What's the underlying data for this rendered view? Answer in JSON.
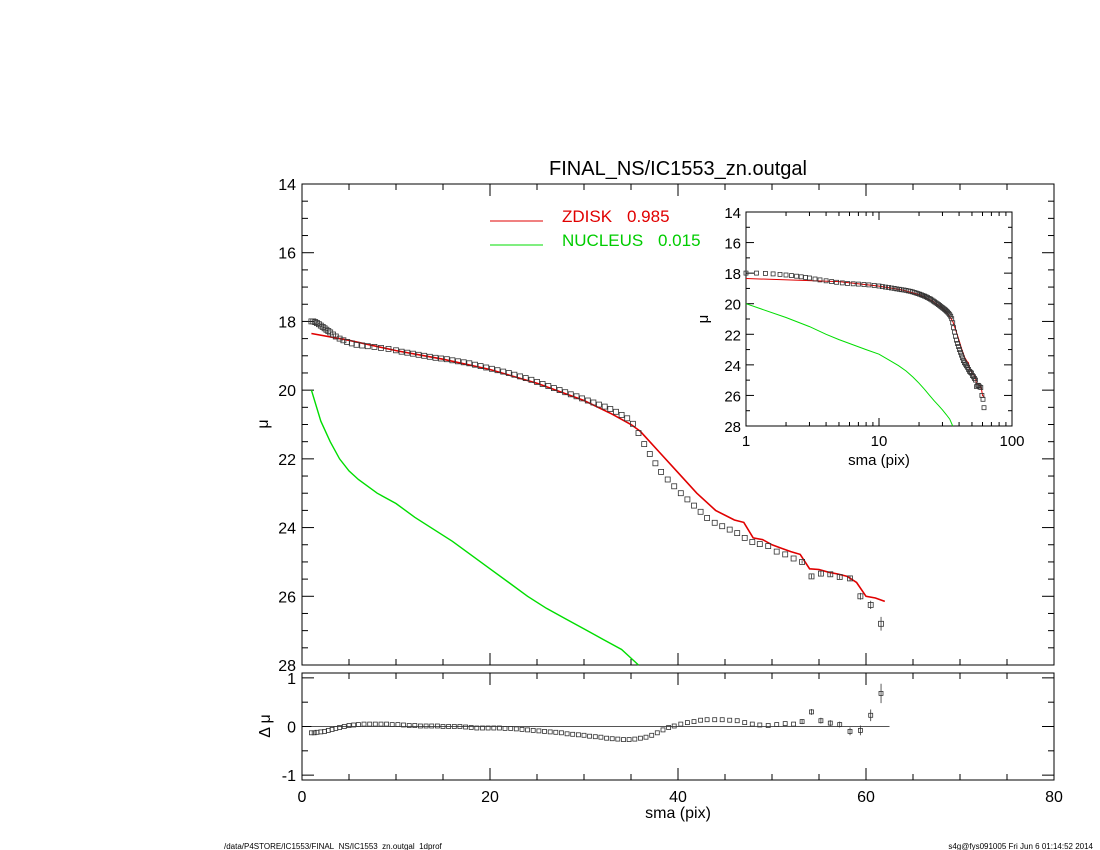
{
  "chart_data": [
    {
      "panel": "main",
      "type": "scatter",
      "title": "FINAL_NS/IC1553_zn.outgal",
      "xlabel": "sma (pix)",
      "ylabel": "μ",
      "xlim": [
        0,
        80
      ],
      "ylim": [
        28,
        14
      ],
      "x_ticks": [
        0,
        20,
        40,
        60,
        80
      ],
      "y_ticks": [
        14,
        16,
        18,
        20,
        22,
        24,
        26,
        28
      ],
      "legend_placement": "top-center",
      "legend": [
        {
          "name": "ZDISK",
          "value": "0.985",
          "color": "#e00000"
        },
        {
          "name": "NUCLEUS",
          "value": "0.015",
          "color": "#00dd00"
        }
      ],
      "observed": {
        "x": [
          1.0,
          1.2,
          1.4,
          1.6,
          1.8,
          2.0,
          2.2,
          2.4,
          2.6,
          2.8,
          3.0,
          3.3,
          3.6,
          4.0,
          4.4,
          4.8,
          5.3,
          5.8,
          6.4,
          7.0,
          7.7,
          8.4,
          9.2,
          10.0,
          10.6,
          11.2,
          11.8,
          12.4,
          13.0,
          13.6,
          14.2,
          14.8,
          15.4,
          16.0,
          16.6,
          17.2,
          17.8,
          18.4,
          19.0,
          19.6,
          20.2,
          20.8,
          21.4,
          22.0,
          22.6,
          23.2,
          23.8,
          24.4,
          25.0,
          25.6,
          26.2,
          26.8,
          27.4,
          28.0,
          28.6,
          29.2,
          29.8,
          30.4,
          31.0,
          31.6,
          32.2,
          32.8,
          33.4,
          34.0,
          34.6,
          35.2,
          35.8,
          36.4,
          37.0,
          37.6,
          38.2,
          38.9,
          39.6,
          40.3,
          41.0,
          41.7,
          42.4,
          43.1,
          43.9,
          44.7,
          45.5,
          46.3,
          47.1,
          47.9,
          48.7,
          49.6,
          50.5,
          51.4,
          52.3,
          53.2,
          54.2,
          55.2,
          56.2,
          57.2,
          58.3,
          59.4,
          60.5,
          61.6
        ],
        "y": [
          18.0,
          18.0,
          18.02,
          18.05,
          18.08,
          18.12,
          18.16,
          18.2,
          18.24,
          18.28,
          18.32,
          18.38,
          18.44,
          18.5,
          18.55,
          18.6,
          18.64,
          18.68,
          18.7,
          18.72,
          18.74,
          18.77,
          18.8,
          18.84,
          18.88,
          18.91,
          18.94,
          18.97,
          19.0,
          19.03,
          19.06,
          19.08,
          19.1,
          19.13,
          19.16,
          19.19,
          19.22,
          19.26,
          19.3,
          19.34,
          19.38,
          19.42,
          19.46,
          19.5,
          19.55,
          19.6,
          19.65,
          19.7,
          19.76,
          19.82,
          19.88,
          19.94,
          20.0,
          20.06,
          20.12,
          20.18,
          20.24,
          20.3,
          20.36,
          20.42,
          20.48,
          20.55,
          20.63,
          20.72,
          20.82,
          20.98,
          21.25,
          21.57,
          21.86,
          22.13,
          22.38,
          22.6,
          22.8,
          23.0,
          23.18,
          23.36,
          23.54,
          23.72,
          23.86,
          23.96,
          24.06,
          24.16,
          24.3,
          24.42,
          24.48,
          24.54,
          24.7,
          24.78,
          24.9,
          25.0,
          25.42,
          25.34,
          25.36,
          25.44,
          25.48,
          26.0,
          26.25,
          26.8
        ],
        "err": [
          0.02,
          0.02,
          0.02,
          0.02,
          0.02,
          0.02,
          0.02,
          0.02,
          0.02,
          0.02,
          0.02,
          0.02,
          0.02,
          0.02,
          0.02,
          0.02,
          0.02,
          0.02,
          0.02,
          0.02,
          0.02,
          0.02,
          0.02,
          0.02,
          0.02,
          0.02,
          0.02,
          0.02,
          0.02,
          0.02,
          0.02,
          0.02,
          0.02,
          0.02,
          0.02,
          0.02,
          0.02,
          0.02,
          0.02,
          0.02,
          0.02,
          0.02,
          0.02,
          0.02,
          0.02,
          0.02,
          0.02,
          0.02,
          0.02,
          0.02,
          0.02,
          0.02,
          0.02,
          0.02,
          0.02,
          0.02,
          0.02,
          0.02,
          0.02,
          0.02,
          0.02,
          0.02,
          0.02,
          0.02,
          0.02,
          0.02,
          0.02,
          0.02,
          0.02,
          0.02,
          0.02,
          0.02,
          0.02,
          0.02,
          0.02,
          0.02,
          0.02,
          0.02,
          0.02,
          0.02,
          0.02,
          0.02,
          0.02,
          0.03,
          0.03,
          0.03,
          0.03,
          0.03,
          0.03,
          0.05,
          0.06,
          0.06,
          0.06,
          0.06,
          0.08,
          0.1,
          0.12,
          0.2
        ]
      },
      "series": [
        {
          "name": "ZDISK",
          "color": "#e00000",
          "x": [
            1,
            5,
            10,
            15,
            20,
            25,
            30,
            33,
            35,
            36,
            38,
            40,
            42,
            44,
            46,
            47,
            48,
            49,
            50,
            51,
            52,
            53,
            54,
            55,
            56,
            57,
            58,
            59,
            60,
            61,
            62
          ],
          "y": [
            18.35,
            18.55,
            18.85,
            19.1,
            19.4,
            19.8,
            20.3,
            20.7,
            21.0,
            21.2,
            21.8,
            22.4,
            23.0,
            23.5,
            23.78,
            23.85,
            24.3,
            24.35,
            24.5,
            24.6,
            24.7,
            24.78,
            25.2,
            25.22,
            25.3,
            25.35,
            25.42,
            25.6,
            26.0,
            26.05,
            26.15
          ]
        },
        {
          "name": "NUCLEUS",
          "color": "#00dd00",
          "x": [
            1,
            2,
            3,
            4,
            5,
            6,
            8,
            10,
            12,
            14,
            16,
            18,
            20,
            22,
            24,
            26,
            28,
            30,
            32,
            34,
            35,
            35.8
          ],
          "y": [
            20.0,
            20.9,
            21.5,
            22.0,
            22.35,
            22.6,
            23.0,
            23.3,
            23.7,
            24.05,
            24.4,
            24.8,
            25.2,
            25.6,
            26.0,
            26.35,
            26.65,
            26.95,
            27.25,
            27.55,
            27.8,
            28.0
          ]
        }
      ]
    },
    {
      "panel": "residual",
      "type": "scatter",
      "xlabel": "sma (pix)",
      "ylabel": "Δ μ",
      "xlim": [
        0,
        80
      ],
      "ylim": [
        -1.1,
        1.1
      ],
      "x_ticks": [
        0,
        20,
        40,
        60,
        80
      ],
      "y_ticks": [
        -1,
        0,
        1
      ],
      "reference_line": 0,
      "x": [
        1.0,
        1.3,
        1.6,
        2.0,
        2.4,
        2.8,
        3.2,
        3.6,
        4.0,
        4.5,
        5.0,
        5.5,
        6.0,
        6.6,
        7.2,
        7.8,
        8.4,
        9.0,
        9.6,
        10.2,
        10.8,
        11.4,
        12.0,
        12.6,
        13.2,
        13.8,
        14.4,
        15.0,
        15.6,
        16.2,
        16.8,
        17.4,
        18.0,
        18.6,
        19.2,
        19.8,
        20.4,
        21.0,
        21.6,
        22.2,
        22.8,
        23.4,
        24.0,
        24.6,
        25.2,
        25.8,
        26.4,
        27.0,
        27.6,
        28.2,
        28.8,
        29.4,
        30.0,
        30.6,
        31.2,
        31.8,
        32.4,
        33.0,
        33.6,
        34.2,
        34.8,
        35.4,
        36.0,
        36.6,
        37.2,
        37.8,
        38.4,
        39.0,
        39.6,
        40.3,
        41.0,
        41.7,
        42.4,
        43.1,
        43.9,
        44.7,
        45.5,
        46.3,
        47.1,
        47.9,
        48.7,
        49.6,
        50.5,
        51.4,
        52.3,
        53.2,
        54.2,
        55.2,
        56.2,
        57.2,
        58.3,
        59.4,
        60.5,
        61.6
      ],
      "y": [
        -0.13,
        -0.13,
        -0.12,
        -0.11,
        -0.1,
        -0.08,
        -0.06,
        -0.04,
        -0.02,
        0.0,
        0.02,
        0.03,
        0.04,
        0.05,
        0.05,
        0.05,
        0.05,
        0.05,
        0.04,
        0.04,
        0.03,
        0.02,
        0.02,
        0.01,
        0.01,
        0.01,
        0.01,
        0.0,
        0.0,
        0.0,
        0.0,
        -0.01,
        -0.02,
        -0.03,
        -0.03,
        -0.03,
        -0.03,
        -0.03,
        -0.04,
        -0.04,
        -0.05,
        -0.06,
        -0.07,
        -0.08,
        -0.09,
        -0.1,
        -0.11,
        -0.12,
        -0.13,
        -0.15,
        -0.16,
        -0.17,
        -0.18,
        -0.2,
        -0.21,
        -0.22,
        -0.24,
        -0.25,
        -0.26,
        -0.27,
        -0.27,
        -0.26,
        -0.24,
        -0.22,
        -0.18,
        -0.13,
        -0.07,
        -0.02,
        0.01,
        0.05,
        0.08,
        0.1,
        0.13,
        0.14,
        0.14,
        0.14,
        0.13,
        0.12,
        0.08,
        0.05,
        0.03,
        0.02,
        0.04,
        0.06,
        0.05,
        0.1,
        0.3,
        0.12,
        0.07,
        0.04,
        -0.1,
        -0.08,
        0.23,
        0.68
      ],
      "err": [
        0.02,
        0.02,
        0.02,
        0.02,
        0.02,
        0.02,
        0.02,
        0.02,
        0.02,
        0.02,
        0.02,
        0.02,
        0.02,
        0.02,
        0.02,
        0.02,
        0.02,
        0.02,
        0.02,
        0.02,
        0.02,
        0.02,
        0.02,
        0.02,
        0.02,
        0.02,
        0.02,
        0.02,
        0.02,
        0.02,
        0.02,
        0.02,
        0.02,
        0.02,
        0.02,
        0.02,
        0.02,
        0.02,
        0.02,
        0.02,
        0.02,
        0.02,
        0.02,
        0.02,
        0.02,
        0.02,
        0.02,
        0.02,
        0.02,
        0.02,
        0.02,
        0.02,
        0.02,
        0.02,
        0.02,
        0.02,
        0.02,
        0.02,
        0.02,
        0.02,
        0.02,
        0.02,
        0.02,
        0.02,
        0.02,
        0.02,
        0.02,
        0.02,
        0.02,
        0.02,
        0.02,
        0.02,
        0.02,
        0.02,
        0.02,
        0.02,
        0.02,
        0.02,
        0.02,
        0.03,
        0.03,
        0.03,
        0.03,
        0.03,
        0.03,
        0.05,
        0.06,
        0.06,
        0.06,
        0.06,
        0.08,
        0.1,
        0.12,
        0.2
      ]
    },
    {
      "panel": "inset",
      "type": "scatter",
      "xlabel": "sma (pix)",
      "ylabel": "μ",
      "xscale": "log",
      "xlim": [
        1,
        100
      ],
      "ylim": [
        28,
        14
      ],
      "x_tick_labels": [
        "1",
        "10",
        "100"
      ],
      "y_ticks": [
        14,
        16,
        18,
        20,
        22,
        24,
        26,
        28
      ],
      "observed_ref": "main.observed",
      "series_ref": "main.series"
    }
  ],
  "footer": {
    "left": "/data/P4STORE/IC1553/FINAL_NS/IC1553_zn.outgal_1dprof",
    "right": "s4g@fys091005  Fri Jun  6 01:14:52 2014"
  }
}
